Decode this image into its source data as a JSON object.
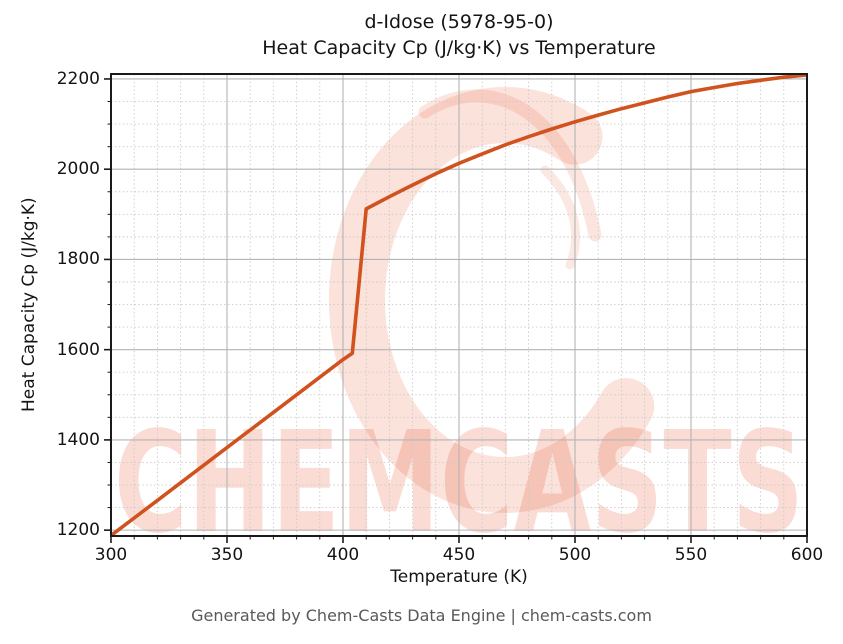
{
  "chart_data": {
    "type": "line",
    "title_line1": "d-Idose (5978-95-0)",
    "title_line2": "Heat Capacity Cp (J/kg·K) vs Temperature",
    "xlabel": "Temperature (K)",
    "ylabel": "Heat Capacity Cp (J/kg·K)",
    "x_range": [
      300,
      600
    ],
    "y_range": [
      1187,
      2211
    ],
    "x_ticks": [
      300,
      350,
      400,
      450,
      500,
      550,
      600
    ],
    "x_minor_step": 10,
    "y_ticks": [
      1200,
      1400,
      1600,
      1800,
      2000,
      2200
    ],
    "y_minor_step": 50,
    "grid": {
      "major": "solid",
      "minor": "dotted",
      "legend": "none"
    },
    "series": [
      {
        "name": "Heat Capacity Cp",
        "color": "#d0521f",
        "line_width": 3.6,
        "x": [
          300,
          310,
          320,
          330,
          340,
          350,
          360,
          370,
          380,
          390,
          400,
          404,
          410,
          420,
          430,
          440,
          450,
          460,
          470,
          480,
          490,
          500,
          510,
          520,
          530,
          540,
          550,
          560,
          570,
          580,
          590,
          600
        ],
        "y": [
          1188,
          1227,
          1266,
          1305,
          1344,
          1383,
          1422,
          1461,
          1500,
          1539,
          1578,
          1592,
          1912,
          1939,
          1965,
          1990,
          2013,
          2034,
          2054,
          2072,
          2089,
          2105,
          2120,
          2134,
          2147,
          2160,
          2172,
          2181,
          2190,
          2197,
          2204,
          2209
        ]
      }
    ],
    "notes": "solid-phase linear rise, melt jump near 404-410 K, concave liquid branch",
    "watermark": {
      "text": "CHEMCASTS",
      "color": "#e8512a",
      "opacity": 0.2
    },
    "footer": "Generated by Chem-Casts Data Engine | chem-casts.com",
    "colors": {
      "grid_major": "#b4b4b4",
      "grid_minor": "#cacaca",
      "spine": "#1a1a1a",
      "text": "#141414",
      "footer_text": "#595959"
    }
  }
}
